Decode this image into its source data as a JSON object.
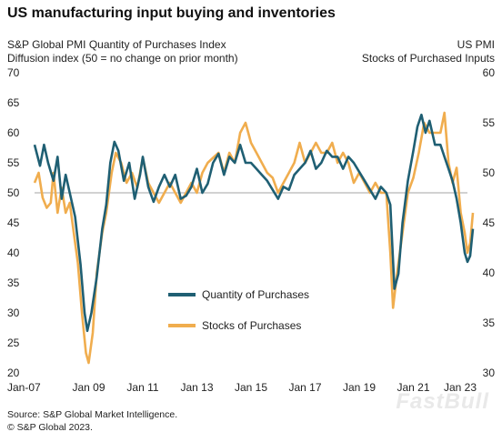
{
  "title": "US manufacturing input buying and inventories",
  "left_axis_title": "S&P Global PMI Quantity of Purchases Index",
  "left_axis_subtitle": "Diffusion index (50 = no change on prior month)",
  "right_axis_title": "US PMI",
  "right_axis_subtitle": "Stocks of Purchased Inputs",
  "source": "Source: S&P Global Market Intelligence.",
  "copyright": "© S&P Global 2023.",
  "watermark": "FastBull",
  "colors": {
    "purchases": "#1f5f73",
    "stocks": "#f0ad4e",
    "refline": "#888888"
  },
  "chart_data": {
    "type": "line",
    "title": "US manufacturing input buying and inventories",
    "x_labels": [
      "Jan-07",
      "Jan 09",
      "Jan 11",
      "Jan 13",
      "Jan 15",
      "Jan 17",
      "Jan 19",
      "Jan 21",
      "Jan 23"
    ],
    "x_range": [
      2007.0,
      2023.0
    ],
    "ylim_left": [
      20,
      70
    ],
    "ylim_right": [
      30,
      60
    ],
    "yticks_left": [
      20,
      25,
      30,
      35,
      40,
      45,
      50,
      55,
      60,
      65,
      70
    ],
    "yticks_right": [
      30,
      35,
      40,
      45,
      50,
      55,
      60
    ],
    "reference_line": 50,
    "legend_position": "lower-center",
    "series": [
      {
        "name": "Quantity of Purchases",
        "axis": "left",
        "points": [
          [
            2007.0,
            58
          ],
          [
            2007.2,
            54.5
          ],
          [
            2007.35,
            58
          ],
          [
            2007.5,
            55
          ],
          [
            2007.7,
            52
          ],
          [
            2007.85,
            56
          ],
          [
            2008.0,
            49
          ],
          [
            2008.15,
            53
          ],
          [
            2008.3,
            50
          ],
          [
            2008.5,
            46
          ],
          [
            2008.7,
            38
          ],
          [
            2008.85,
            30
          ],
          [
            2008.95,
            27
          ],
          [
            2009.1,
            30
          ],
          [
            2009.3,
            36
          ],
          [
            2009.5,
            44
          ],
          [
            2009.65,
            48
          ],
          [
            2009.8,
            55
          ],
          [
            2009.95,
            58.5
          ],
          [
            2010.1,
            57
          ],
          [
            2010.3,
            52
          ],
          [
            2010.5,
            55
          ],
          [
            2010.7,
            49
          ],
          [
            2010.9,
            53
          ],
          [
            2011.0,
            56
          ],
          [
            2011.2,
            51
          ],
          [
            2011.4,
            48.5
          ],
          [
            2011.6,
            51
          ],
          [
            2011.8,
            53
          ],
          [
            2012.0,
            51
          ],
          [
            2012.2,
            53
          ],
          [
            2012.4,
            49
          ],
          [
            2012.6,
            49.5
          ],
          [
            2012.8,
            51
          ],
          [
            2013.0,
            54
          ],
          [
            2013.2,
            50
          ],
          [
            2013.4,
            51.5
          ],
          [
            2013.6,
            55
          ],
          [
            2013.8,
            56.5
          ],
          [
            2014.0,
            53
          ],
          [
            2014.2,
            56
          ],
          [
            2014.4,
            55
          ],
          [
            2014.6,
            58
          ],
          [
            2014.8,
            55
          ],
          [
            2015.0,
            55
          ],
          [
            2015.2,
            54
          ],
          [
            2015.4,
            53
          ],
          [
            2015.6,
            52
          ],
          [
            2015.8,
            50.5
          ],
          [
            2016.0,
            49
          ],
          [
            2016.2,
            51
          ],
          [
            2016.4,
            50.5
          ],
          [
            2016.6,
            53
          ],
          [
            2016.8,
            54
          ],
          [
            2017.0,
            55
          ],
          [
            2017.2,
            57
          ],
          [
            2017.4,
            54
          ],
          [
            2017.6,
            55
          ],
          [
            2017.8,
            57
          ],
          [
            2018.0,
            56
          ],
          [
            2018.2,
            56
          ],
          [
            2018.4,
            54
          ],
          [
            2018.6,
            56
          ],
          [
            2018.8,
            55
          ],
          [
            2019.0,
            53.5
          ],
          [
            2019.2,
            52
          ],
          [
            2019.4,
            50.5
          ],
          [
            2019.6,
            49
          ],
          [
            2019.8,
            51
          ],
          [
            2020.0,
            50
          ],
          [
            2020.15,
            48
          ],
          [
            2020.3,
            34
          ],
          [
            2020.45,
            36.5
          ],
          [
            2020.6,
            45
          ],
          [
            2020.8,
            52
          ],
          [
            2021.0,
            57
          ],
          [
            2021.15,
            61
          ],
          [
            2021.3,
            63
          ],
          [
            2021.45,
            60
          ],
          [
            2021.6,
            62
          ],
          [
            2021.8,
            58
          ],
          [
            2022.0,
            58
          ],
          [
            2022.15,
            56
          ],
          [
            2022.3,
            54
          ],
          [
            2022.45,
            52
          ],
          [
            2022.6,
            49
          ],
          [
            2022.75,
            45
          ],
          [
            2022.9,
            40
          ],
          [
            2023.0,
            38.5
          ],
          [
            2023.1,
            39.5
          ],
          [
            2023.2,
            44
          ]
        ]
      },
      {
        "name": "Stocks of Purchases",
        "axis": "right",
        "points": [
          [
            2007.0,
            49
          ],
          [
            2007.15,
            50
          ],
          [
            2007.3,
            47.5
          ],
          [
            2007.45,
            46.5
          ],
          [
            2007.6,
            47
          ],
          [
            2007.7,
            50
          ],
          [
            2007.85,
            46
          ],
          [
            2008.0,
            48.5
          ],
          [
            2008.15,
            46
          ],
          [
            2008.3,
            47
          ],
          [
            2008.45,
            44
          ],
          [
            2008.6,
            41
          ],
          [
            2008.75,
            36
          ],
          [
            2008.9,
            32
          ],
          [
            2009.0,
            31
          ],
          [
            2009.15,
            34
          ],
          [
            2009.3,
            40
          ],
          [
            2009.5,
            44
          ],
          [
            2009.65,
            46
          ],
          [
            2009.85,
            50
          ],
          [
            2010.0,
            52
          ],
          [
            2010.2,
            51
          ],
          [
            2010.4,
            49
          ],
          [
            2010.6,
            50
          ],
          [
            2010.8,
            48.5
          ],
          [
            2011.0,
            51.5
          ],
          [
            2011.2,
            49
          ],
          [
            2011.4,
            48
          ],
          [
            2011.6,
            47
          ],
          [
            2011.8,
            48
          ],
          [
            2012.0,
            49
          ],
          [
            2012.2,
            48
          ],
          [
            2012.4,
            47
          ],
          [
            2012.6,
            48
          ],
          [
            2012.8,
            49
          ],
          [
            2013.0,
            48
          ],
          [
            2013.2,
            50
          ],
          [
            2013.4,
            51
          ],
          [
            2013.6,
            51.5
          ],
          [
            2013.8,
            52
          ],
          [
            2014.0,
            50
          ],
          [
            2014.2,
            52
          ],
          [
            2014.4,
            51
          ],
          [
            2014.6,
            54
          ],
          [
            2014.8,
            55
          ],
          [
            2015.0,
            53
          ],
          [
            2015.2,
            52
          ],
          [
            2015.4,
            51
          ],
          [
            2015.6,
            50
          ],
          [
            2015.8,
            49.5
          ],
          [
            2016.0,
            48
          ],
          [
            2016.2,
            49
          ],
          [
            2016.4,
            50
          ],
          [
            2016.6,
            51
          ],
          [
            2016.8,
            53
          ],
          [
            2017.0,
            51
          ],
          [
            2017.2,
            52
          ],
          [
            2017.4,
            53
          ],
          [
            2017.6,
            52
          ],
          [
            2017.8,
            52
          ],
          [
            2018.0,
            53
          ],
          [
            2018.2,
            51
          ],
          [
            2018.4,
            52
          ],
          [
            2018.6,
            51
          ],
          [
            2018.8,
            49
          ],
          [
            2019.0,
            50
          ],
          [
            2019.2,
            49
          ],
          [
            2019.4,
            48
          ],
          [
            2019.6,
            49
          ],
          [
            2019.8,
            48
          ],
          [
            2020.0,
            48
          ],
          [
            2020.15,
            42
          ],
          [
            2020.25,
            36.5
          ],
          [
            2020.4,
            40
          ],
          [
            2020.6,
            44
          ],
          [
            2020.8,
            48
          ],
          [
            2021.0,
            49.5
          ],
          [
            2021.2,
            52
          ],
          [
            2021.4,
            55
          ],
          [
            2021.6,
            54
          ],
          [
            2021.8,
            54
          ],
          [
            2022.0,
            54
          ],
          [
            2022.15,
            56
          ],
          [
            2022.3,
            51
          ],
          [
            2022.45,
            49
          ],
          [
            2022.6,
            50.5
          ],
          [
            2022.75,
            46
          ],
          [
            2022.9,
            44
          ],
          [
            2023.0,
            42
          ],
          [
            2023.1,
            43
          ],
          [
            2023.2,
            46
          ]
        ]
      }
    ]
  }
}
